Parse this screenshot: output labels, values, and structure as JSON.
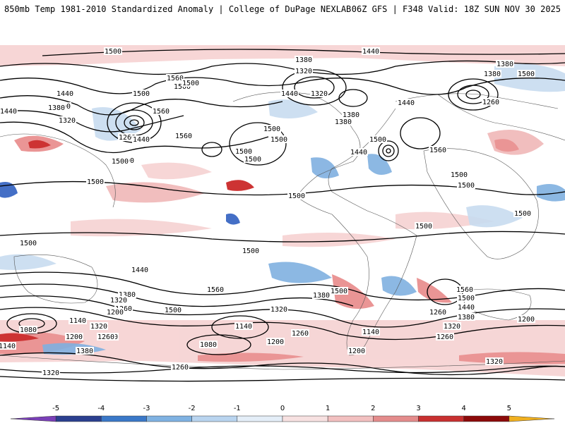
{
  "header": {
    "left": "850mb Temp 1981-2010 Standardized Anomaly | College of DuPage NEXLAB",
    "right": "06Z GFS | F348 Valid: 18Z SUN NOV 30 2025"
  },
  "map": {
    "contour_labels": [
      "1500",
      "1440",
      "1380",
      "1320",
      "1560",
      "1500",
      "1440",
      "1320",
      "1380",
      "1500",
      "1560",
      "1500",
      "1380",
      "1260",
      "1440",
      "1500",
      "1500",
      "1500",
      "1440",
      "1380",
      "1440",
      "1500",
      "1500",
      "1560",
      "1500",
      "1260",
      "1320",
      "1380",
      "1440",
      "1440",
      "1500",
      "1500",
      "1500",
      "1500",
      "1380",
      "1500",
      "1560",
      "1500",
      "1500",
      "1440",
      "1380",
      "1320",
      "1260",
      "1320",
      "1200",
      "1140",
      "1080",
      "1140",
      "1200",
      "1260",
      "1380",
      "1320",
      "1200",
      "1140",
      "1080",
      "1260",
      "1200",
      "1260",
      "1500",
      "1140",
      "1200",
      "1560",
      "1500",
      "1440",
      "1380",
      "1320",
      "1260",
      "1200",
      "1320",
      "1260",
      "1500",
      "1380",
      "1320",
      "1560",
      "1500",
      "1500",
      "1500",
      "1500"
    ],
    "anomaly_colors": {
      "strong_cold": "#3060c0",
      "cold": "#80b0e0",
      "weak_cold": "#c8dcf0",
      "weak_warm": "#f6d2d2",
      "warm": "#e88a8a",
      "strong_warm": "#c81e1e"
    }
  },
  "colorbar": {
    "ticks": [
      "-5",
      "-4",
      "-3",
      "-2",
      "-1",
      "0",
      "1",
      "2",
      "3",
      "4",
      "5"
    ],
    "colors": [
      "#7a3fb8",
      "#2b3f8f",
      "#3a78c8",
      "#7fb2e2",
      "#b9d4ef",
      "#e4eef8",
      "#f7e1e1",
      "#f2c0c0",
      "#e48c8c",
      "#c83030",
      "#8c0a0a",
      "#f0b020"
    ]
  }
}
